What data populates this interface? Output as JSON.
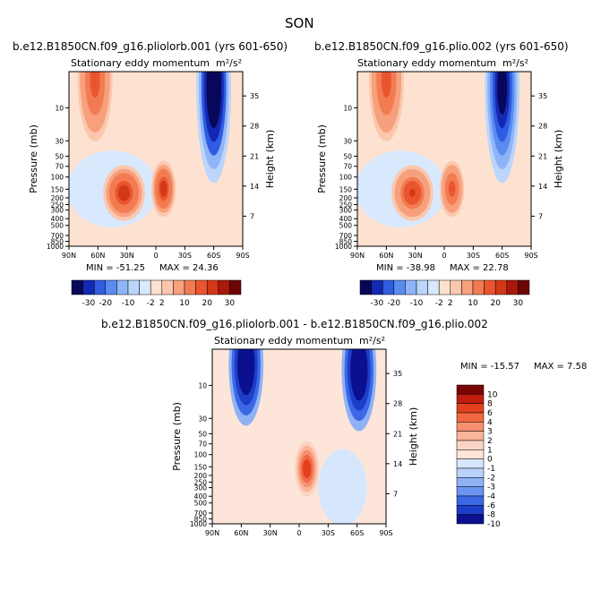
{
  "page": {
    "season": "SON"
  },
  "units_label": "m²/s²",
  "chart_data": [
    {
      "type": "heatmap",
      "id": "p1",
      "case_title": "b.e12.B1850CN.f09_g16.pliolorb.001 (yrs 601-650)",
      "title": "Stationary eddy momentum",
      "units": "m²/s²",
      "xlabel": "",
      "ylabel": "Pressure (mb)",
      "ylabel_right": "Height (km)",
      "x_ticks": [
        "90N",
        "60N",
        "30N",
        "0",
        "30S",
        "60S",
        "90S"
      ],
      "x_values": [
        90,
        60,
        30,
        0,
        -30,
        -60,
        -90
      ],
      "y_ticks": [
        "10",
        "30",
        "50",
        "70",
        "100",
        "150",
        "200",
        "250",
        "300",
        "400",
        "500",
        "700",
        "850",
        "1000"
      ],
      "y_values": [
        10,
        30,
        50,
        70,
        100,
        150,
        200,
        250,
        300,
        400,
        500,
        700,
        850,
        1000
      ],
      "y_scale": "log",
      "ylim": [
        1000,
        3
      ],
      "height_ticks": [
        "35",
        "28",
        "21",
        "14",
        "7"
      ],
      "min_label": "MIN = -51.25",
      "max_label": "MAX = 24.36",
      "colorbar_labels": [
        "-30",
        "-20",
        "-10",
        "-2",
        "2",
        "10",
        "20",
        "30"
      ],
      "features": [
        {
          "lat": 63,
          "p": 4,
          "value": 20
        },
        {
          "lat": 33,
          "p": 170,
          "value": 24
        },
        {
          "lat": -8,
          "p": 148,
          "value": 24
        },
        {
          "lat": -60,
          "p": 5,
          "value": -51
        }
      ]
    },
    {
      "type": "heatmap",
      "id": "p2",
      "case_title": "b.e12.B1850CN.f09_g16.plio.002 (yrs 601-650)",
      "title": "Stationary eddy momentum",
      "units": "m²/s²",
      "xlabel": "",
      "ylabel": "Pressure (mb)",
      "ylabel_right": "Height (km)",
      "x_ticks": [
        "90N",
        "60N",
        "30N",
        "0",
        "30S",
        "60S",
        "90S"
      ],
      "x_values": [
        90,
        60,
        30,
        0,
        -30,
        -60,
        -90
      ],
      "y_ticks": [
        "10",
        "30",
        "50",
        "70",
        "100",
        "150",
        "200",
        "250",
        "300",
        "400",
        "500",
        "700",
        "850",
        "1000"
      ],
      "y_values": [
        10,
        30,
        50,
        70,
        100,
        150,
        200,
        250,
        300,
        400,
        500,
        700,
        850,
        1000
      ],
      "y_scale": "log",
      "ylim": [
        1000,
        3
      ],
      "height_ticks": [
        "35",
        "28",
        "21",
        "14",
        "7"
      ],
      "min_label": "MIN = -38.98",
      "max_label": "MAX = 22.78",
      "colorbar_labels": [
        "-30",
        "-20",
        "-10",
        "-2",
        "2",
        "10",
        "20",
        "30"
      ],
      "features": [
        {
          "lat": 60,
          "p": 4,
          "value": 20
        },
        {
          "lat": 33,
          "p": 170,
          "value": 22
        },
        {
          "lat": -8,
          "p": 148,
          "value": 18
        },
        {
          "lat": -60,
          "p": 5,
          "value": -39
        }
      ]
    },
    {
      "type": "heatmap",
      "id": "p3",
      "case_title": "b.e12.B1850CN.f09_g16.pliolorb.001 - b.e12.B1850CN.f09_g16.plio.002",
      "title": "Stationary eddy momentum",
      "units": "m²/s²",
      "xlabel": "",
      "ylabel": "Pressure (mb)",
      "ylabel_right": "Height (km)",
      "x_ticks": [
        "90N",
        "60N",
        "30N",
        "0",
        "30S",
        "60S",
        "90S"
      ],
      "x_values": [
        90,
        60,
        30,
        0,
        -30,
        -60,
        -90
      ],
      "y_ticks": [
        "10",
        "30",
        "50",
        "70",
        "100",
        "150",
        "200",
        "250",
        "300",
        "400",
        "500",
        "700",
        "850",
        "1000"
      ],
      "y_values": [
        10,
        30,
        50,
        70,
        100,
        150,
        200,
        250,
        300,
        400,
        500,
        700,
        850,
        1000
      ],
      "y_scale": "log",
      "ylim": [
        1000,
        3
      ],
      "height_ticks": [
        "35",
        "28",
        "21",
        "14",
        "7"
      ],
      "min_label": "MIN = -15.57",
      "max_label": "MAX =   7.58",
      "colorbar_labels": [
        "10",
        "8",
        "6",
        "4",
        "3",
        "2",
        "1",
        "0",
        "-1",
        "-2",
        "-3",
        "-4",
        "-6",
        "-8",
        "-10"
      ],
      "features": [
        {
          "lat": 55,
          "p": 5,
          "value": -15
        },
        {
          "lat": -8,
          "p": 160,
          "value": 7.5
        },
        {
          "lat": -62,
          "p": 6,
          "value": -15
        }
      ]
    }
  ],
  "colors": {
    "panel_scale": [
      "#08085a",
      "#1428b4",
      "#2f5ce0",
      "#5a8cf0",
      "#8fb4f8",
      "#bcd5fb",
      "#d8e8fd",
      "#fde2d2",
      "#fbc7ad",
      "#f7a07d",
      "#f27b52",
      "#ea5530",
      "#d23818",
      "#a8180c",
      "#6e0606"
    ],
    "diff_scale": [
      "#7a0404",
      "#c01c10",
      "#e4401e",
      "#f26840",
      "#f79070",
      "#fab49a",
      "#fcd4c3",
      "#fde5d9",
      "#d6e6fc",
      "#b8d2fb",
      "#8fb2f6",
      "#6b93f2",
      "#3c68e6",
      "#1c3ec8",
      "#0a1090"
    ]
  }
}
